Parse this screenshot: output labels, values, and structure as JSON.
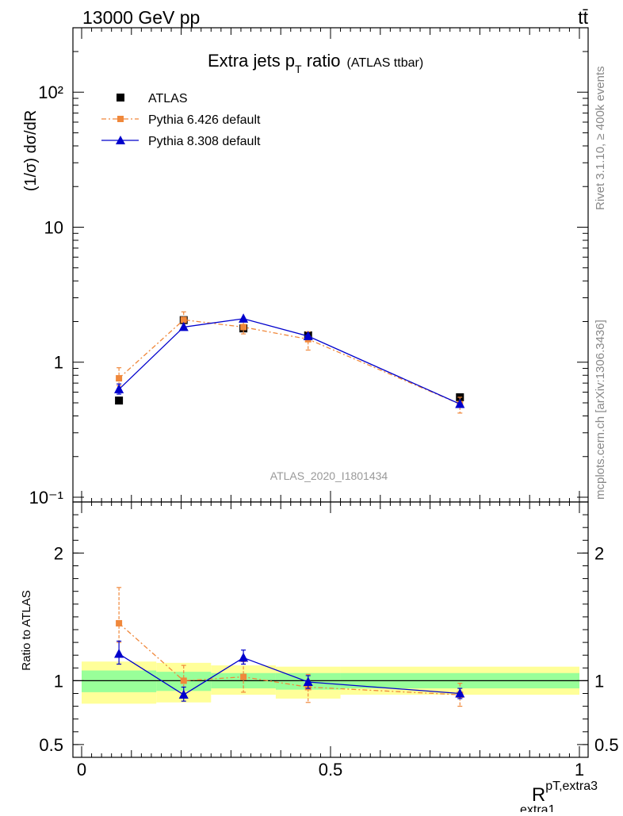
{
  "header": {
    "left_label": "13000 GeV pp",
    "right_label": "tt̄"
  },
  "side_labels": {
    "rivet": "Rivet 3.1.10, ≥ 400k events",
    "mcplots": "mcplots.cern.ch [arXiv:1306.3436]"
  },
  "chart_data": {
    "type": "scatter",
    "title_main": "Extra jets p",
    "title_sub": "T",
    "title_rest": " ratio",
    "title_tag": "(ATLAS ttbar)",
    "watermark": "ATLAS_2020_I1801434",
    "ylabel_top": "(1/σ) dσ/dR",
    "ylabel_ratio": "Ratio to ATLAS",
    "xlabel_main": "R",
    "xlabel_sup": "pT,extra3",
    "xlabel_sub": "extra1",
    "xlim": [
      0,
      1
    ],
    "ylim_top": [
      0.1,
      300
    ],
    "ylim_ratio": [
      0.4,
      2.4
    ],
    "top_ticks": [
      {
        "value": 0.1,
        "label": "10⁻¹"
      },
      {
        "value": 1,
        "label": "1"
      },
      {
        "value": 10,
        "label": "10"
      },
      {
        "value": 100,
        "label": "10²"
      }
    ],
    "ratio_ticks": [
      {
        "value": 0.5,
        "label": "0.5"
      },
      {
        "value": 1,
        "label": "1"
      },
      {
        "value": 2,
        "label": "2"
      }
    ],
    "x_ticks": [
      {
        "value": 0,
        "label": "0"
      },
      {
        "value": 0.5,
        "label": "0.5"
      },
      {
        "value": 1,
        "label": "1"
      }
    ],
    "bins": [
      {
        "lo": 0.0,
        "hi": 0.15,
        "center": 0.075,
        "green": [
          0.91,
          1.08
        ],
        "yellow": [
          0.82,
          1.15
        ]
      },
      {
        "lo": 0.15,
        "hi": 0.26,
        "center": 0.205,
        "green": [
          0.92,
          1.07
        ],
        "yellow": [
          0.83,
          1.14
        ]
      },
      {
        "lo": 0.26,
        "hi": 0.39,
        "center": 0.325,
        "green": [
          0.94,
          1.06
        ],
        "yellow": [
          0.89,
          1.12
        ]
      },
      {
        "lo": 0.39,
        "hi": 0.52,
        "center": 0.455,
        "green": [
          0.93,
          1.06
        ],
        "yellow": [
          0.86,
          1.11
        ]
      },
      {
        "lo": 0.52,
        "hi": 1.0,
        "center": 0.76,
        "green": [
          0.94,
          1.06
        ],
        "yellow": [
          0.89,
          1.11
        ]
      }
    ],
    "series": [
      {
        "name": "ATLAS",
        "color": "#000000",
        "marker": "square",
        "x": [
          0.075,
          0.205,
          0.325,
          0.455,
          0.76
        ],
        "values": [
          0.52,
          2.05,
          1.78,
          1.58,
          0.55
        ],
        "ratio": [
          1,
          1,
          1,
          1,
          1
        ]
      },
      {
        "name": "Pythia 6.426 default",
        "color": "#f0883b",
        "marker": "square",
        "x": [
          0.075,
          0.205,
          0.325,
          0.455,
          0.76
        ],
        "values": [
          0.76,
          2.06,
          1.82,
          1.48,
          0.49
        ],
        "err_low": [
          0.09,
          0.24,
          0.2,
          0.25,
          0.07
        ],
        "err_high": [
          0.15,
          0.3,
          0.2,
          0.2,
          0.06
        ],
        "ratio": [
          1.45,
          1.0,
          1.03,
          0.95,
          0.89
        ],
        "ratio_err_low": [
          0.15,
          0.12,
          0.12,
          0.12,
          0.09
        ],
        "ratio_err_high": [
          0.28,
          0.12,
          0.12,
          0.1,
          0.09
        ]
      },
      {
        "name": "Pythia 8.308 default",
        "color": "#0000cc",
        "marker": "triangle",
        "x": [
          0.075,
          0.205,
          0.325,
          0.455,
          0.76
        ],
        "values": [
          0.63,
          1.82,
          2.1,
          1.56,
          0.49
        ],
        "err_low": [
          0.05,
          0.0,
          0.0,
          0.0,
          0.0
        ],
        "err_high": [
          0.06,
          0.0,
          0.0,
          0.0,
          0.0
        ],
        "ratio": [
          1.21,
          0.89,
          1.18,
          0.99,
          0.9
        ],
        "ratio_err_low": [
          0.08,
          0.05,
          0.05,
          0.05,
          0.04
        ],
        "ratio_err_high": [
          0.1,
          0.06,
          0.06,
          0.05,
          0.04
        ]
      }
    ]
  }
}
